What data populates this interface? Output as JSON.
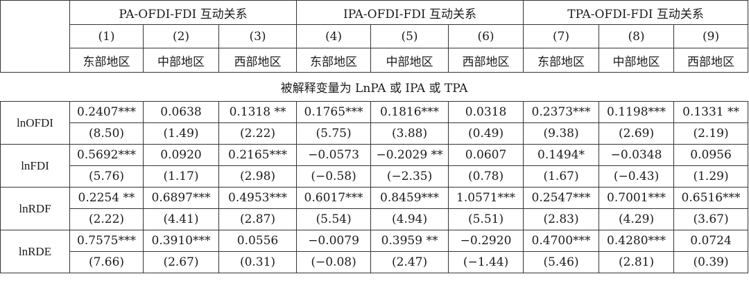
{
  "groups": [
    "PA-OFDI-FDI 互动关系",
    "IPA-OFDI-FDI 互动关系",
    "TPA-OFDI-FDI 互动关系"
  ],
  "column_numbers": [
    "(1)",
    "(2)",
    "(3)",
    "(4)",
    "(5)",
    "(6)",
    "(7)",
    "(8)",
    "(9)"
  ],
  "regions": [
    "东部地区",
    "中部地区",
    "西部地区",
    "东部地区",
    "中部地区",
    "西部地区",
    "东部地区",
    "中部地区",
    "西部地区"
  ],
  "dependent_variable": "被解释变量为 LnPA 或 IPA 或 TPA",
  "rows": [
    {
      "label": "lnOFDI",
      "coef": [
        "0.2407***",
        "0.0638",
        "0.1318 **",
        "0.1765***",
        "0.1816***",
        "0.0318",
        "0.2373***",
        "0.1198***",
        "0.1331 **"
      ],
      "se": [
        "(8.50)",
        "(1.49)",
        "(2.22)",
        "(5.75)",
        "(3.88)",
        "(0.49)",
        "(9.38)",
        "(2.69)",
        "(2.19)"
      ]
    },
    {
      "label": "lnFDI",
      "coef": [
        "0.5692***",
        "0.0920",
        "0.2165***",
        "−0.0573",
        "−0.2029 **",
        "0.0607",
        "0.1494*",
        "−0.0348",
        "0.0956"
      ],
      "se": [
        "(5.76)",
        "(1.17)",
        "(2.98)",
        "(−0.58)",
        "(−2.35)",
        "(0.78)",
        "(1.67)",
        "(−0.43)",
        "(1.29)"
      ]
    },
    {
      "label": "lnRDF",
      "coef": [
        "0.2254 **",
        "0.6897***",
        "0.4953***",
        "0.6017***",
        "0.8459***",
        "1.0571***",
        "0.2547***",
        "0.7001***",
        "0.6516***"
      ],
      "se": [
        "(2.22)",
        "(4.41)",
        "(2.87)",
        "(5.54)",
        "(4.94)",
        "(5.51)",
        "(2.83)",
        "(4.29)",
        "(3.67)"
      ]
    },
    {
      "label": "lnRDE",
      "coef": [
        "0.7575***",
        "0.3910***",
        "0.0556",
        "−0.0079",
        "0.3959 **",
        "−0.2920",
        "0.4700***",
        "0.4280***",
        "0.0724"
      ],
      "se": [
        "(7.66)",
        "(2.67)",
        "(0.31)",
        "(−0.08)",
        "(2.47)",
        "(−1.44)",
        "(5.46)",
        "(2.81)",
        "(0.39)"
      ]
    }
  ]
}
